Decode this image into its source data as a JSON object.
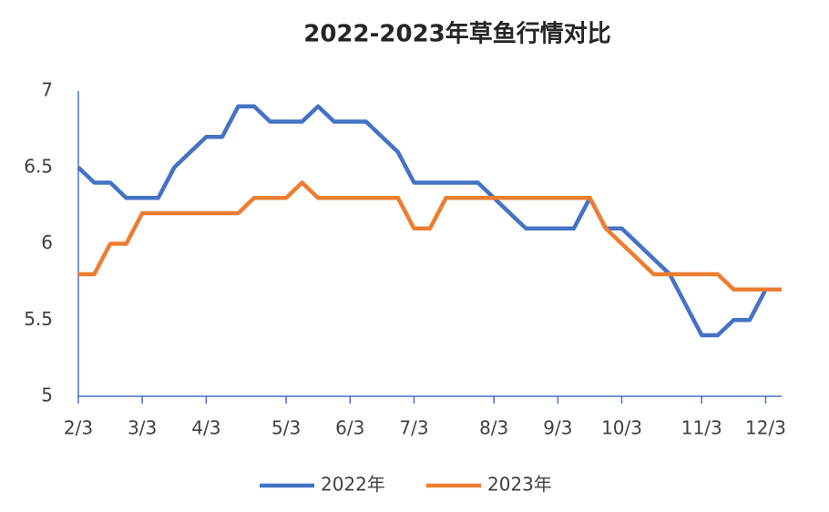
{
  "chart_data": {
    "type": "line",
    "title": "2022-2023年草鱼行情对比",
    "categories": [
      "2/3",
      null,
      null,
      null,
      "3/3",
      null,
      null,
      null,
      "4/3",
      null,
      null,
      null,
      null,
      "5/3",
      null,
      null,
      null,
      "6/3",
      null,
      null,
      null,
      "7/3",
      null,
      null,
      null,
      null,
      "8/3",
      null,
      null,
      null,
      "9/3",
      null,
      null,
      null,
      "10/3",
      null,
      null,
      null,
      null,
      "11/3",
      null,
      null,
      null,
      "12/3",
      null
    ],
    "series": [
      {
        "name": "2022年",
        "color": "#4472c4",
        "values": [
          6.5,
          6.4,
          6.4,
          6.3,
          6.3,
          6.3,
          6.5,
          6.6,
          6.7,
          6.7,
          6.9,
          6.9,
          6.8,
          6.8,
          6.8,
          6.9,
          6.8,
          6.8,
          6.8,
          6.7,
          6.6,
          6.4,
          6.4,
          6.4,
          6.4,
          6.4,
          6.3,
          6.2,
          6.1,
          6.1,
          6.1,
          6.1,
          6.3,
          6.1,
          6.1,
          6.0,
          5.9,
          5.8,
          5.6,
          5.4,
          5.4,
          5.5,
          5.5,
          5.7,
          5.7
        ]
      },
      {
        "name": "2023年",
        "color": "#ed7d31",
        "values": [
          5.8,
          5.8,
          6.0,
          6.0,
          6.2,
          6.2,
          6.2,
          6.2,
          6.2,
          6.2,
          6.2,
          6.3,
          6.3,
          6.3,
          6.4,
          6.3,
          6.3,
          6.3,
          6.3,
          6.3,
          6.3,
          6.1,
          6.1,
          6.3,
          6.3,
          6.3,
          6.3,
          6.3,
          6.3,
          6.3,
          6.3,
          6.3,
          6.3,
          6.1,
          6.0,
          5.9,
          5.8,
          5.8,
          5.8,
          5.8,
          5.8,
          5.7,
          5.7,
          5.7,
          5.7
        ]
      }
    ],
    "ylim": [
      5,
      7
    ],
    "yticks": [
      5,
      5.5,
      6,
      6.5,
      7
    ],
    "grid": false,
    "legend": "bottom"
  }
}
